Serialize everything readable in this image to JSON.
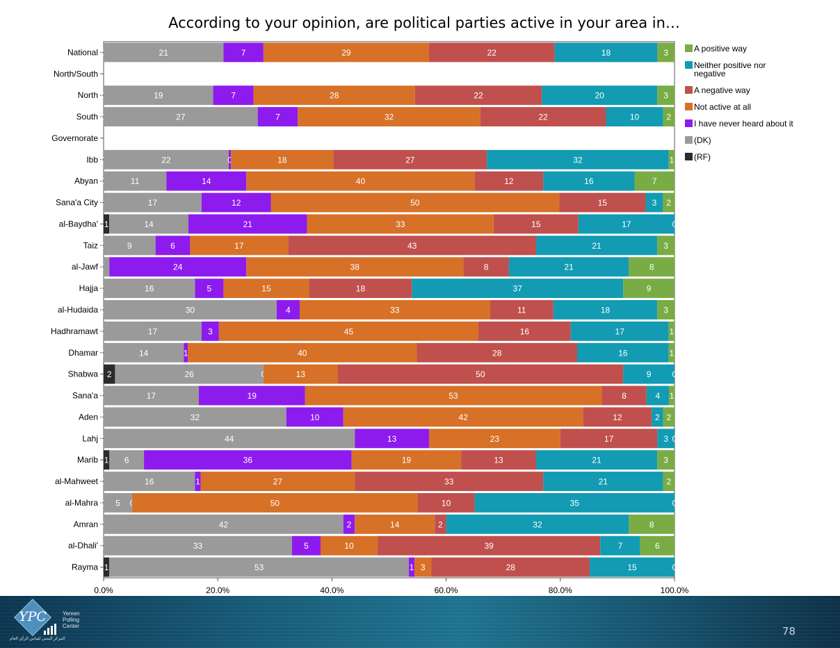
{
  "chart_data": {
    "type": "bar",
    "orientation": "horizontal",
    "stacked": "percent",
    "title": "According to your opinion, are political parties active in your area in…",
    "xlim": [
      0,
      100
    ],
    "x_ticks": [
      "0.0%",
      "20.0%",
      "40.0%",
      "60.0%",
      "80.0%",
      "100.0%"
    ],
    "grid": false,
    "legend_position": "right",
    "categories": [
      "National",
      "North/South",
      "North",
      "South",
      "Governorate",
      "Ibb",
      "Abyan",
      "Sana'a City",
      "al-Baydha'",
      "Taiz",
      "al-Jawf",
      "Hajja",
      "al-Hudaida",
      "Hadhramawt",
      "Dhamar",
      "Shabwa",
      "Sana'a",
      "Aden",
      "Lahj",
      "Marib",
      "al-Mahweet",
      "al-Mahra",
      "Amran",
      "al-Dhali'",
      "Rayma"
    ],
    "series": [
      {
        "name": "(RF)",
        "color": "#2b2b2b",
        "values": [
          0,
          null,
          0,
          0,
          null,
          0,
          0,
          0,
          1,
          0,
          0,
          0,
          0,
          0,
          0,
          2,
          0,
          0,
          0,
          1,
          0,
          0,
          0,
          0,
          1
        ],
        "labels": [
          "0",
          "",
          "0",
          "0",
          "",
          "0",
          "0",
          "0",
          "1",
          "0",
          "0",
          "0",
          "0",
          "0",
          "0",
          "2",
          "0",
          "0",
          "0",
          "1",
          "0",
          "0",
          "0",
          "0",
          "1"
        ]
      },
      {
        "name": "(DK)",
        "color": "#9a9a9a",
        "values": [
          21,
          null,
          19,
          27,
          null,
          22,
          11,
          17,
          14,
          9,
          1,
          16,
          30,
          17,
          14,
          26,
          17,
          32,
          44,
          6,
          16,
          5,
          42,
          33,
          53
        ],
        "labels": [
          "21",
          "",
          "19",
          "27",
          "",
          "22",
          "11",
          "17",
          "14",
          "9",
          "",
          "16",
          "30",
          "17",
          "14",
          "26",
          "17",
          "32",
          "44",
          "6",
          "16",
          "5",
          "42",
          "33",
          "53"
        ]
      },
      {
        "name": "I have never heard about it",
        "color": "#8e1bee",
        "values": [
          7,
          null,
          7,
          7,
          null,
          0.4,
          14,
          12,
          21,
          6,
          24,
          5,
          4,
          3,
          0.7,
          0,
          19,
          10,
          13,
          36,
          1,
          0,
          2,
          5,
          1
        ],
        "labels": [
          "7",
          "",
          "7",
          "7",
          "",
          "0",
          "14",
          "12",
          "21",
          "6",
          "24",
          "5",
          "4",
          "3",
          "1",
          "0",
          "19",
          "10",
          "13",
          "36",
          "1",
          "0",
          "2",
          "5",
          "1"
        ]
      },
      {
        "name": "Not active at all",
        "color": "#d77127",
        "values": [
          29,
          null,
          28,
          32,
          null,
          18,
          40,
          50,
          33,
          17,
          38,
          15,
          33,
          45,
          40,
          13,
          53,
          42,
          23,
          19,
          27,
          50,
          14,
          10,
          3
        ],
        "labels": [
          "29",
          "",
          "28",
          "32",
          "",
          "18",
          "40",
          "50",
          "33",
          "17",
          "38",
          "15",
          "33",
          "45",
          "40",
          "13",
          "53",
          "42",
          "23",
          "19",
          "27",
          "50",
          "14",
          "10",
          "3"
        ]
      },
      {
        "name": "A negative way",
        "color": "#c0504d",
        "values": [
          22,
          null,
          22,
          22,
          null,
          27,
          12,
          15,
          15,
          43,
          8,
          18,
          11,
          16,
          28,
          50,
          8,
          12,
          17,
          13,
          33,
          10,
          2,
          39,
          28
        ],
        "labels": [
          "22",
          "",
          "22",
          "22",
          "",
          "27",
          "12",
          "15",
          "15",
          "43",
          "8",
          "18",
          "11",
          "16",
          "28",
          "50",
          "8",
          "12",
          "17",
          "13",
          "33",
          "10",
          "2",
          "39",
          "28"
        ]
      },
      {
        "name": "Neither positive nor negative",
        "color": "#129bb3",
        "values": [
          18,
          null,
          20,
          10,
          null,
          32,
          16,
          3,
          17,
          21,
          21,
          37,
          18,
          17,
          16,
          9,
          4,
          2,
          3,
          21,
          21,
          35,
          32,
          7,
          15
        ],
        "labels": [
          "18",
          "",
          "20",
          "10",
          "",
          "32",
          "16",
          "3",
          "17",
          "21",
          "21",
          "37",
          "18",
          "17",
          "16",
          "9",
          "4",
          "2",
          "3",
          "21",
          "21",
          "35",
          "32",
          "7",
          "15"
        ]
      },
      {
        "name": "A positive way",
        "color": "#79ac45",
        "values": [
          3,
          null,
          3,
          2,
          null,
          1,
          7,
          2,
          0,
          3,
          8,
          9,
          3,
          1,
          1,
          0,
          1,
          2,
          0,
          3,
          2,
          0,
          8,
          6,
          0
        ],
        "labels": [
          "3",
          "",
          "3",
          "2",
          "",
          "1",
          "7",
          "2",
          "0",
          "3",
          "8",
          "9",
          "3",
          "1",
          "1",
          "0",
          "1",
          "2",
          "0",
          "3",
          "2",
          "0",
          "8",
          "6",
          "0"
        ]
      }
    ],
    "legend_order": [
      "A positive way",
      "Neither positive nor negative",
      "A negative way",
      "Not active at all",
      "I have never heard about it",
      "(DK)",
      "(RF)"
    ]
  },
  "footer": {
    "page_number": "78",
    "logo_letters": "YPC",
    "logo_text_lines": [
      "Yemen",
      "Polling",
      "Center"
    ],
    "logo_arabic": "المركز اليمني لقياس الرأي العام"
  }
}
